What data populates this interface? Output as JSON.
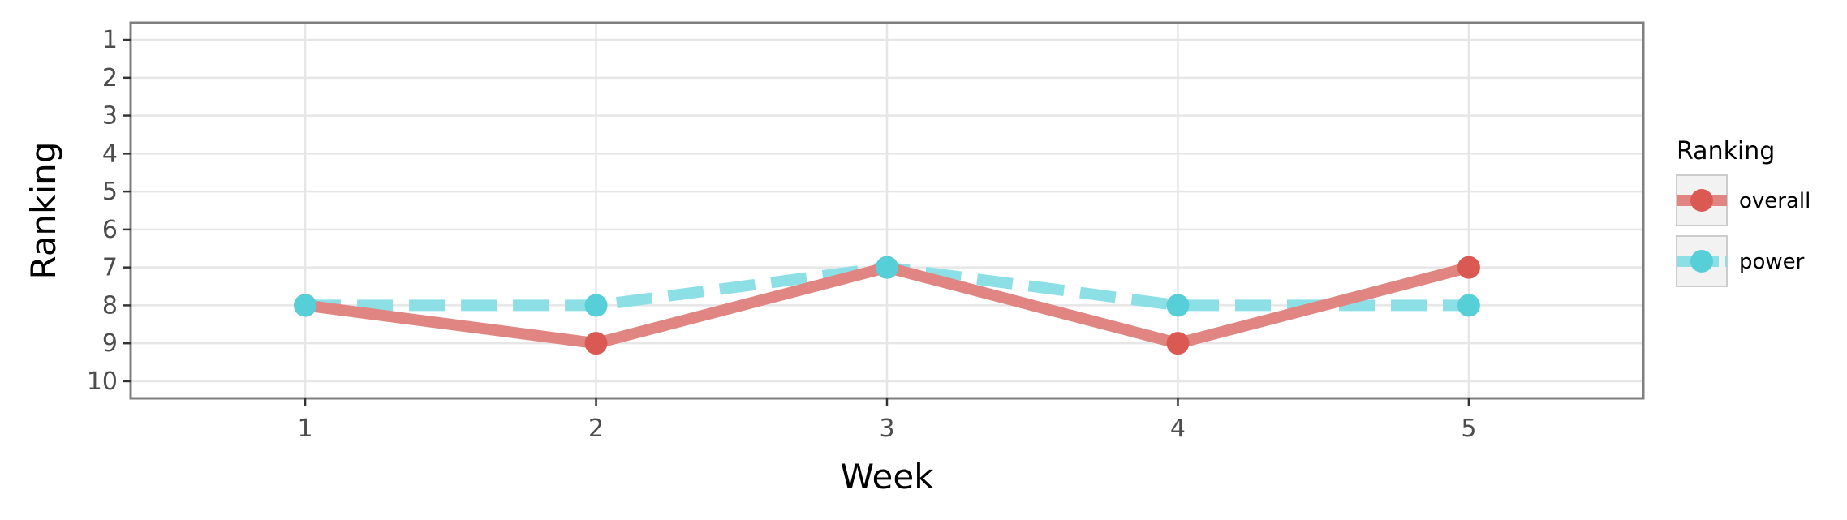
{
  "chart_data": {
    "type": "line",
    "xlabel": "Week",
    "ylabel": "Ranking",
    "x": [
      1,
      2,
      3,
      4,
      5
    ],
    "x_ticks": [
      "1",
      "2",
      "3",
      "4",
      "5"
    ],
    "y_ticks": [
      "1",
      "2",
      "3",
      "4",
      "5",
      "6",
      "7",
      "8",
      "9",
      "10"
    ],
    "xlim": [
      0.4,
      5.6
    ],
    "ylim": [
      0.55,
      10.45
    ],
    "y_reversed": true,
    "grid": true,
    "legend": {
      "title": "Ranking",
      "placement": "right"
    },
    "series": [
      {
        "name": "overall",
        "values": [
          8,
          9,
          7,
          9,
          7
        ],
        "color": "#E08582",
        "point_color": "#DA5A53",
        "dash": "solid"
      },
      {
        "name": "power",
        "values": [
          8,
          8,
          7,
          8,
          8
        ],
        "color": "#8DDFE6",
        "point_color": "#56CFD8",
        "dash": "dashed"
      }
    ]
  }
}
